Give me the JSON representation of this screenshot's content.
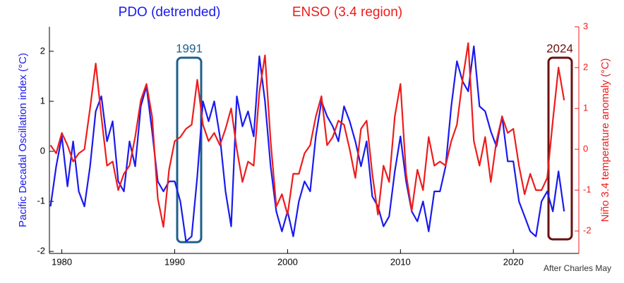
{
  "chart_data": {
    "type": "line",
    "series_labels_title": null,
    "annotations": [
      "1991",
      "2024",
      "After Charles May"
    ],
    "ylabel": "Pacific Decadal Oscillation index (°C)",
    "y2label": "Niño 3.4 temperature anomaly (°C)",
    "x": [
      1979,
      1979.5,
      1980,
      1980.5,
      1981,
      1981.5,
      1982,
      1982.5,
      1983,
      1983.5,
      1984,
      1984.5,
      1985,
      1985.5,
      1986,
      1986.5,
      1987,
      1987.5,
      1988,
      1988.5,
      1989,
      1989.5,
      1990,
      1990.5,
      1991,
      1991.5,
      1992,
      1992.5,
      1993,
      1993.5,
      1994,
      1994.5,
      1995,
      1995.5,
      1996,
      1996.5,
      1997,
      1997.5,
      1998,
      1998.5,
      1999,
      1999.5,
      2000,
      2000.5,
      2001,
      2001.5,
      2002,
      2002.5,
      2003,
      2003.5,
      2004,
      2004.5,
      2005,
      2005.5,
      2006,
      2006.5,
      2007,
      2007.5,
      2008,
      2008.5,
      2009,
      2009.5,
      2010,
      2010.5,
      2011,
      2011.5,
      2012,
      2012.5,
      2013,
      2013.5,
      2014,
      2014.5,
      2015,
      2015.5,
      2016,
      2016.5,
      2017,
      2017.5,
      2018,
      2018.5,
      2019,
      2019.5,
      2020,
      2020.5,
      2021,
      2021.5,
      2022,
      2022.5,
      2023,
      2023.5,
      2024,
      2024.5
    ],
    "series": [
      {
        "name": "PDO (detrended)",
        "color": "#1a1aee",
        "axis": "y",
        "values": [
          -1.1,
          -0.3,
          0.3,
          -0.7,
          0.2,
          -0.8,
          -1.1,
          -0.3,
          0.8,
          1.1,
          0.2,
          0.6,
          -0.6,
          -0.8,
          0.2,
          -0.3,
          0.9,
          1.3,
          0.4,
          -0.6,
          -0.8,
          -0.6,
          -0.6,
          -1.0,
          -1.8,
          -1.7,
          -0.5,
          1.0,
          0.6,
          1.0,
          0.3,
          -0.8,
          -1.5,
          1.1,
          0.5,
          0.8,
          0.3,
          1.9,
          1.0,
          -0.3,
          -1.2,
          -1.6,
          -1.2,
          -1.7,
          -1.0,
          -0.6,
          -0.8,
          0.3,
          1.0,
          0.7,
          0.5,
          0.2,
          0.9,
          0.6,
          0.2,
          -0.3,
          0.2,
          -0.9,
          -1.1,
          -1.5,
          -1.3,
          -0.4,
          0.3,
          -0.6,
          -1.2,
          -1.4,
          -1.0,
          -1.6,
          -0.8,
          -0.8,
          -0.3,
          0.9,
          1.8,
          1.4,
          1.2,
          2.1,
          0.9,
          0.8,
          0.4,
          0.1,
          0.7,
          -0.2,
          -0.2,
          -1.0,
          -1.3,
          -1.6,
          -1.7,
          -1.0,
          -0.8,
          -1.2,
          -0.4,
          -1.2
        ]
      },
      {
        "name": "ENSO (3.4 region)",
        "color": "#ee1c1c",
        "axis": "y2",
        "values": [
          0.1,
          -0.1,
          0.4,
          0.1,
          -0.3,
          -0.1,
          0.0,
          1.0,
          2.1,
          0.8,
          -0.4,
          -0.3,
          -1.0,
          -0.6,
          -0.4,
          0.3,
          1.2,
          1.6,
          0.8,
          -1.2,
          -1.9,
          -0.5,
          0.2,
          0.3,
          0.5,
          0.6,
          1.7,
          0.6,
          0.2,
          0.4,
          0.1,
          0.5,
          1.0,
          0.0,
          -0.8,
          -0.3,
          -0.4,
          1.4,
          2.3,
          0.2,
          -1.4,
          -1.1,
          -1.6,
          -0.6,
          -0.6,
          -0.1,
          0.1,
          0.8,
          1.3,
          0.1,
          0.3,
          0.7,
          0.6,
          0.0,
          -0.7,
          0.5,
          0.7,
          -0.6,
          -1.6,
          -0.4,
          -0.8,
          0.8,
          1.6,
          -0.6,
          -1.5,
          -0.5,
          -1.0,
          0.3,
          -0.4,
          -0.3,
          -0.4,
          0.2,
          0.6,
          1.7,
          2.6,
          0.2,
          -0.4,
          0.3,
          -0.8,
          0.2,
          0.8,
          0.4,
          0.5,
          -0.4,
          -1.1,
          -0.6,
          -1.0,
          -1.0,
          -0.7,
          0.7,
          2.0,
          1.2
        ]
      }
    ],
    "xlim": [
      1978.9,
      2025.8
    ],
    "xticks": [
      1980,
      1990,
      2000,
      2010,
      2020
    ],
    "ylim": [
      -2.04,
      2.49
    ],
    "yticks": [
      -2,
      -1,
      0,
      1,
      2
    ],
    "y2lim": [
      -2.55,
      3.0
    ],
    "y2ticks": [
      -2,
      -1,
      0,
      1,
      2,
      3
    ]
  }
}
